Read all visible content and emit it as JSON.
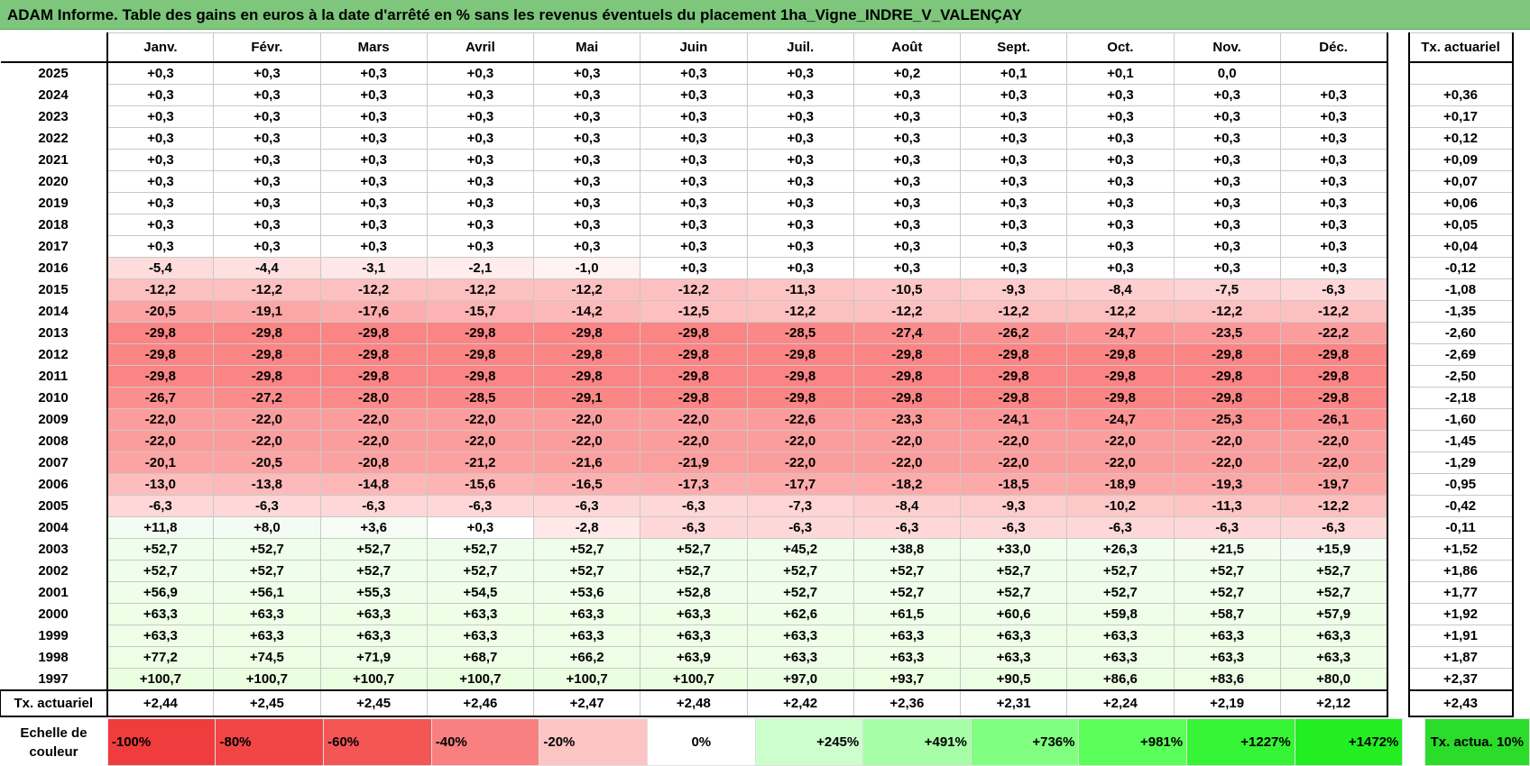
{
  "title": "ADAM Informe. Table des gains en euros à la date d'arrêté en % sans les revenus éventuels du placement 1ha_Vigne_INDRE_V_VALENÇAY",
  "months": [
    "Janv.",
    "Févr.",
    "Mars",
    "Avril",
    "Mai",
    "Juin",
    "Juil.",
    "Août",
    "Sept.",
    "Oct.",
    "Nov.",
    "Déc."
  ],
  "tx_header": "Tx. actuariel",
  "rows": [
    {
      "year": "2025",
      "values": [
        "+0,3",
        "+0,3",
        "+0,3",
        "+0,3",
        "+0,3",
        "+0,3",
        "+0,3",
        "+0,2",
        "+0,1",
        "+0,1",
        "0,0",
        ""
      ],
      "tx": ""
    },
    {
      "year": "2024",
      "values": [
        "+0,3",
        "+0,3",
        "+0,3",
        "+0,3",
        "+0,3",
        "+0,3",
        "+0,3",
        "+0,3",
        "+0,3",
        "+0,3",
        "+0,3",
        "+0,3"
      ],
      "tx": "+0,36"
    },
    {
      "year": "2023",
      "values": [
        "+0,3",
        "+0,3",
        "+0,3",
        "+0,3",
        "+0,3",
        "+0,3",
        "+0,3",
        "+0,3",
        "+0,3",
        "+0,3",
        "+0,3",
        "+0,3"
      ],
      "tx": "+0,17"
    },
    {
      "year": "2022",
      "values": [
        "+0,3",
        "+0,3",
        "+0,3",
        "+0,3",
        "+0,3",
        "+0,3",
        "+0,3",
        "+0,3",
        "+0,3",
        "+0,3",
        "+0,3",
        "+0,3"
      ],
      "tx": "+0,12"
    },
    {
      "year": "2021",
      "values": [
        "+0,3",
        "+0,3",
        "+0,3",
        "+0,3",
        "+0,3",
        "+0,3",
        "+0,3",
        "+0,3",
        "+0,3",
        "+0,3",
        "+0,3",
        "+0,3"
      ],
      "tx": "+0,09"
    },
    {
      "year": "2020",
      "values": [
        "+0,3",
        "+0,3",
        "+0,3",
        "+0,3",
        "+0,3",
        "+0,3",
        "+0,3",
        "+0,3",
        "+0,3",
        "+0,3",
        "+0,3",
        "+0,3"
      ],
      "tx": "+0,07"
    },
    {
      "year": "2019",
      "values": [
        "+0,3",
        "+0,3",
        "+0,3",
        "+0,3",
        "+0,3",
        "+0,3",
        "+0,3",
        "+0,3",
        "+0,3",
        "+0,3",
        "+0,3",
        "+0,3"
      ],
      "tx": "+0,06"
    },
    {
      "year": "2018",
      "values": [
        "+0,3",
        "+0,3",
        "+0,3",
        "+0,3",
        "+0,3",
        "+0,3",
        "+0,3",
        "+0,3",
        "+0,3",
        "+0,3",
        "+0,3",
        "+0,3"
      ],
      "tx": "+0,05"
    },
    {
      "year": "2017",
      "values": [
        "+0,3",
        "+0,3",
        "+0,3",
        "+0,3",
        "+0,3",
        "+0,3",
        "+0,3",
        "+0,3",
        "+0,3",
        "+0,3",
        "+0,3",
        "+0,3"
      ],
      "tx": "+0,04"
    },
    {
      "year": "2016",
      "values": [
        "-5,4",
        "-4,4",
        "-3,1",
        "-2,1",
        "-1,0",
        "+0,3",
        "+0,3",
        "+0,3",
        "+0,3",
        "+0,3",
        "+0,3",
        "+0,3"
      ],
      "tx": "-0,12"
    },
    {
      "year": "2015",
      "values": [
        "-12,2",
        "-12,2",
        "-12,2",
        "-12,2",
        "-12,2",
        "-12,2",
        "-11,3",
        "-10,5",
        "-9,3",
        "-8,4",
        "-7,5",
        "-6,3"
      ],
      "tx": "-1,08"
    },
    {
      "year": "2014",
      "values": [
        "-20,5",
        "-19,1",
        "-17,6",
        "-15,7",
        "-14,2",
        "-12,5",
        "-12,2",
        "-12,2",
        "-12,2",
        "-12,2",
        "-12,2",
        "-12,2"
      ],
      "tx": "-1,35"
    },
    {
      "year": "2013",
      "values": [
        "-29,8",
        "-29,8",
        "-29,8",
        "-29,8",
        "-29,8",
        "-29,8",
        "-28,5",
        "-27,4",
        "-26,2",
        "-24,7",
        "-23,5",
        "-22,2"
      ],
      "tx": "-2,60"
    },
    {
      "year": "2012",
      "values": [
        "-29,8",
        "-29,8",
        "-29,8",
        "-29,8",
        "-29,8",
        "-29,8",
        "-29,8",
        "-29,8",
        "-29,8",
        "-29,8",
        "-29,8",
        "-29,8"
      ],
      "tx": "-2,69"
    },
    {
      "year": "2011",
      "values": [
        "-29,8",
        "-29,8",
        "-29,8",
        "-29,8",
        "-29,8",
        "-29,8",
        "-29,8",
        "-29,8",
        "-29,8",
        "-29,8",
        "-29,8",
        "-29,8"
      ],
      "tx": "-2,50"
    },
    {
      "year": "2010",
      "values": [
        "-26,7",
        "-27,2",
        "-28,0",
        "-28,5",
        "-29,1",
        "-29,8",
        "-29,8",
        "-29,8",
        "-29,8",
        "-29,8",
        "-29,8",
        "-29,8"
      ],
      "tx": "-2,18"
    },
    {
      "year": "2009",
      "values": [
        "-22,0",
        "-22,0",
        "-22,0",
        "-22,0",
        "-22,0",
        "-22,0",
        "-22,6",
        "-23,3",
        "-24,1",
        "-24,7",
        "-25,3",
        "-26,1"
      ],
      "tx": "-1,60"
    },
    {
      "year": "2008",
      "values": [
        "-22,0",
        "-22,0",
        "-22,0",
        "-22,0",
        "-22,0",
        "-22,0",
        "-22,0",
        "-22,0",
        "-22,0",
        "-22,0",
        "-22,0",
        "-22,0"
      ],
      "tx": "-1,45"
    },
    {
      "year": "2007",
      "values": [
        "-20,1",
        "-20,5",
        "-20,8",
        "-21,2",
        "-21,6",
        "-21,9",
        "-22,0",
        "-22,0",
        "-22,0",
        "-22,0",
        "-22,0",
        "-22,0"
      ],
      "tx": "-1,29"
    },
    {
      "year": "2006",
      "values": [
        "-13,0",
        "-13,8",
        "-14,8",
        "-15,6",
        "-16,5",
        "-17,3",
        "-17,7",
        "-18,2",
        "-18,5",
        "-18,9",
        "-19,3",
        "-19,7"
      ],
      "tx": "-0,95"
    },
    {
      "year": "2005",
      "values": [
        "-6,3",
        "-6,3",
        "-6,3",
        "-6,3",
        "-6,3",
        "-6,3",
        "-7,3",
        "-8,4",
        "-9,3",
        "-10,2",
        "-11,3",
        "-12,2"
      ],
      "tx": "-0,42"
    },
    {
      "year": "2004",
      "values": [
        "+11,8",
        "+8,0",
        "+3,6",
        "+0,3",
        "-2,8",
        "-6,3",
        "-6,3",
        "-6,3",
        "-6,3",
        "-6,3",
        "-6,3",
        "-6,3"
      ],
      "tx": "-0,11"
    },
    {
      "year": "2003",
      "values": [
        "+52,7",
        "+52,7",
        "+52,7",
        "+52,7",
        "+52,7",
        "+52,7",
        "+45,2",
        "+38,8",
        "+33,0",
        "+26,3",
        "+21,5",
        "+15,9"
      ],
      "tx": "+1,52"
    },
    {
      "year": "2002",
      "values": [
        "+52,7",
        "+52,7",
        "+52,7",
        "+52,7",
        "+52,7",
        "+52,7",
        "+52,7",
        "+52,7",
        "+52,7",
        "+52,7",
        "+52,7",
        "+52,7"
      ],
      "tx": "+1,86"
    },
    {
      "year": "2001",
      "values": [
        "+56,9",
        "+56,1",
        "+55,3",
        "+54,5",
        "+53,6",
        "+52,8",
        "+52,7",
        "+52,7",
        "+52,7",
        "+52,7",
        "+52,7",
        "+52,7"
      ],
      "tx": "+1,77"
    },
    {
      "year": "2000",
      "values": [
        "+63,3",
        "+63,3",
        "+63,3",
        "+63,3",
        "+63,3",
        "+63,3",
        "+62,6",
        "+61,5",
        "+60,6",
        "+59,8",
        "+58,7",
        "+57,9"
      ],
      "tx": "+1,92"
    },
    {
      "year": "1999",
      "values": [
        "+63,3",
        "+63,3",
        "+63,3",
        "+63,3",
        "+63,3",
        "+63,3",
        "+63,3",
        "+63,3",
        "+63,3",
        "+63,3",
        "+63,3",
        "+63,3"
      ],
      "tx": "+1,91"
    },
    {
      "year": "1998",
      "values": [
        "+77,2",
        "+74,5",
        "+71,9",
        "+68,7",
        "+66,2",
        "+63,9",
        "+63,3",
        "+63,3",
        "+63,3",
        "+63,3",
        "+63,3",
        "+63,3"
      ],
      "tx": "+1,87"
    },
    {
      "year": "1997",
      "values": [
        "+100,7",
        "+100,7",
        "+100,7",
        "+100,7",
        "+100,7",
        "+100,7",
        "+97,0",
        "+93,7",
        "+90,5",
        "+86,6",
        "+83,6",
        "+80,0"
      ],
      "tx": "+2,37"
    }
  ],
  "final_row": {
    "label": "Tx. actuariel",
    "values": [
      "+2,44",
      "+2,45",
      "+2,45",
      "+2,46",
      "+2,47",
      "+2,48",
      "+2,42",
      "+2,36",
      "+2,31",
      "+2,24",
      "+2,19",
      "+2,12"
    ],
    "tx": "+2,43"
  },
  "legend": {
    "label": "Echelle de couleur",
    "cells": [
      {
        "text": "-100%",
        "bg": "#f03c3c",
        "kind": "neg"
      },
      {
        "text": "-80%",
        "bg": "#f24646",
        "kind": "neg"
      },
      {
        "text": "-60%",
        "bg": "#f45656",
        "kind": "neg"
      },
      {
        "text": "-40%",
        "bg": "#f88080",
        "kind": "neg"
      },
      {
        "text": "-20%",
        "bg": "#fdc4c4",
        "kind": "neg"
      },
      {
        "text": "0%",
        "bg": "#ffffff",
        "kind": "zero"
      },
      {
        "text": "+245%",
        "bg": "#ccffcc",
        "kind": "pos"
      },
      {
        "text": "+491%",
        "bg": "#a6ffa6",
        "kind": "pos"
      },
      {
        "text": "+736%",
        "bg": "#80ff80",
        "kind": "pos"
      },
      {
        "text": "+981%",
        "bg": "#5aff5a",
        "kind": "pos"
      },
      {
        "text": "+1227%",
        "bg": "#36f536",
        "kind": "pos"
      },
      {
        "text": "+1472%",
        "bg": "#22ee22",
        "kind": "pos"
      }
    ],
    "tx_label": "Tx. actua. 10%"
  },
  "colors": {
    "title_bg": "#7dc67b",
    "legend_tx_bg": "#2bdc2b"
  }
}
